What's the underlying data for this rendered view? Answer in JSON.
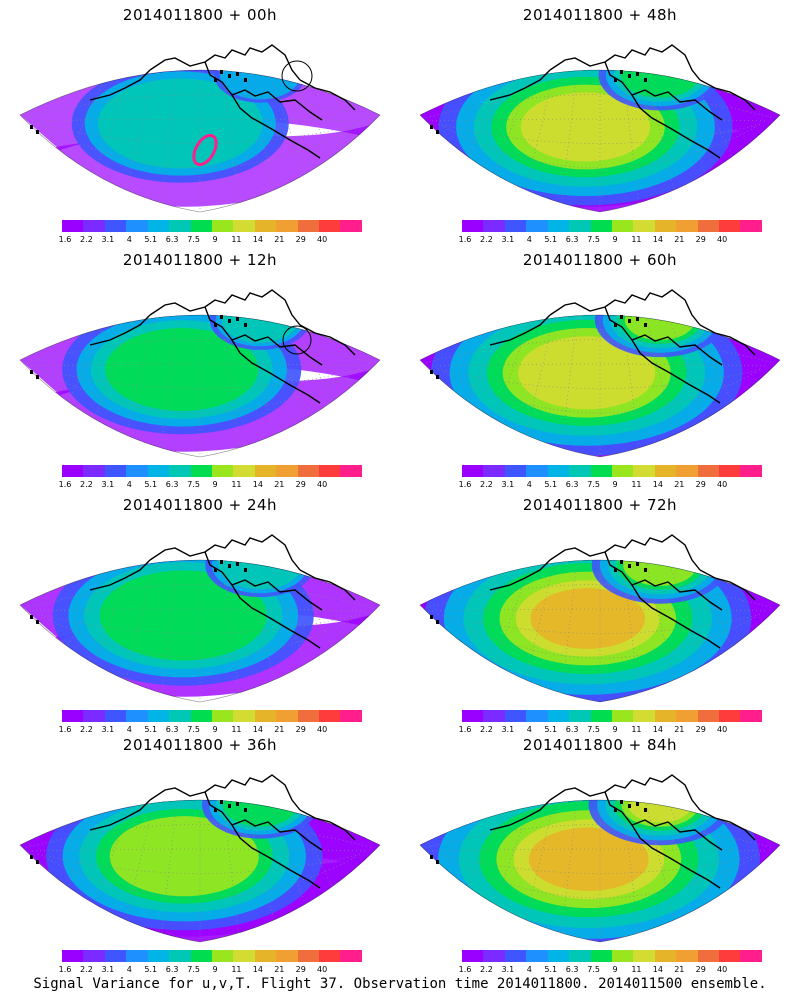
{
  "panels": [
    {
      "title": "2014011800 + 00h",
      "lead": "00h",
      "intensity": 0.35
    },
    {
      "title": "2014011800 + 48h",
      "lead": "48h",
      "intensity": 0.7
    },
    {
      "title": "2014011800 + 12h",
      "lead": "12h",
      "intensity": 0.45
    },
    {
      "title": "2014011800 + 60h",
      "lead": "60h",
      "intensity": 0.78
    },
    {
      "title": "2014011800 + 24h",
      "lead": "24h",
      "intensity": 0.55
    },
    {
      "title": "2014011800 + 72h",
      "lead": "72h",
      "intensity": 0.85
    },
    {
      "title": "2014011800 + 36h",
      "lead": "36h",
      "intensity": 0.62
    },
    {
      "title": "2014011800 + 84h",
      "lead": "84h",
      "intensity": 0.92
    }
  ],
  "colorbar": {
    "ticks": [
      "1.6",
      "2.2",
      "3.1",
      "4",
      "5.1",
      "6.3",
      "7.5",
      "9",
      "11",
      "14",
      "21",
      "29",
      "40"
    ],
    "colors": [
      "#9a00ff",
      "#7b2bff",
      "#3f55ff",
      "#1e90ff",
      "#00b4e6",
      "#00c8b4",
      "#00dc50",
      "#9ae61e",
      "#d2dc32",
      "#e6b428",
      "#f0a032",
      "#f06e3c",
      "#ff3c3c",
      "#ff1e8c"
    ]
  },
  "caption": "Signal Variance for u,v,T. Flight 37. Observation time 2014011800. 2014011500 ensemble."
}
